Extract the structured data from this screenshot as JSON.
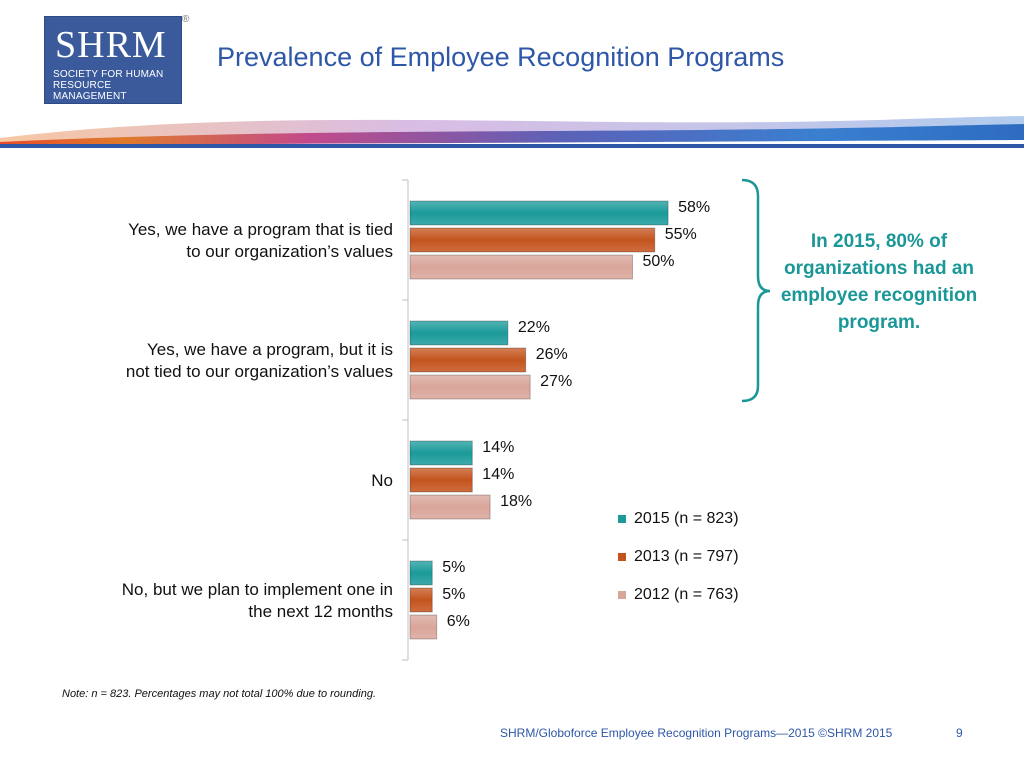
{
  "logo": {
    "mark": "SHRM",
    "subtitle": "SOCIETY FOR HUMAN RESOURCE MANAGEMENT",
    "registered": "®"
  },
  "slide": {
    "title": "Prevalence of Employee Recognition Programs",
    "note": "Note: n = 823. Percentages may not total 100% due to rounding.",
    "footer": "SHRM/Globoforce Employee Recognition Programs—2015 ©SHRM 2015",
    "page": "9",
    "callout": "In 2015, 80% of organizations had an employee recognition program."
  },
  "colors": {
    "title": "#2e57a8",
    "callout": "#1b9797",
    "series_2015": "#1b9a9a",
    "series_2013": "#c4541e",
    "series_2012": "#d9a59a"
  },
  "chart_data": {
    "type": "bar",
    "orientation": "horizontal",
    "title": "",
    "xlabel": "",
    "ylabel": "",
    "value_suffix": "%",
    "xlim": [
      0,
      70
    ],
    "grid": false,
    "legend": "bottom-right",
    "categories": [
      [
        "Yes, we have a program that is tied",
        "to our organization’s values"
      ],
      [
        "Yes, we have a program, but it is",
        "not tied to our organization’s values"
      ],
      [
        "No"
      ],
      [
        "No, but we plan to implement one in",
        "the next 12 months"
      ]
    ],
    "series": [
      {
        "name": "2015 (n = 823)",
        "color": "#1b9a9a",
        "values": [
          58,
          22,
          14,
          5
        ]
      },
      {
        "name": "2013 (n = 797)",
        "color": "#c4541e",
        "values": [
          55,
          26,
          14,
          5
        ]
      },
      {
        "name": "2012 (n = 763)",
        "color": "#d9a59a",
        "values": [
          50,
          27,
          18,
          6
        ]
      }
    ]
  }
}
